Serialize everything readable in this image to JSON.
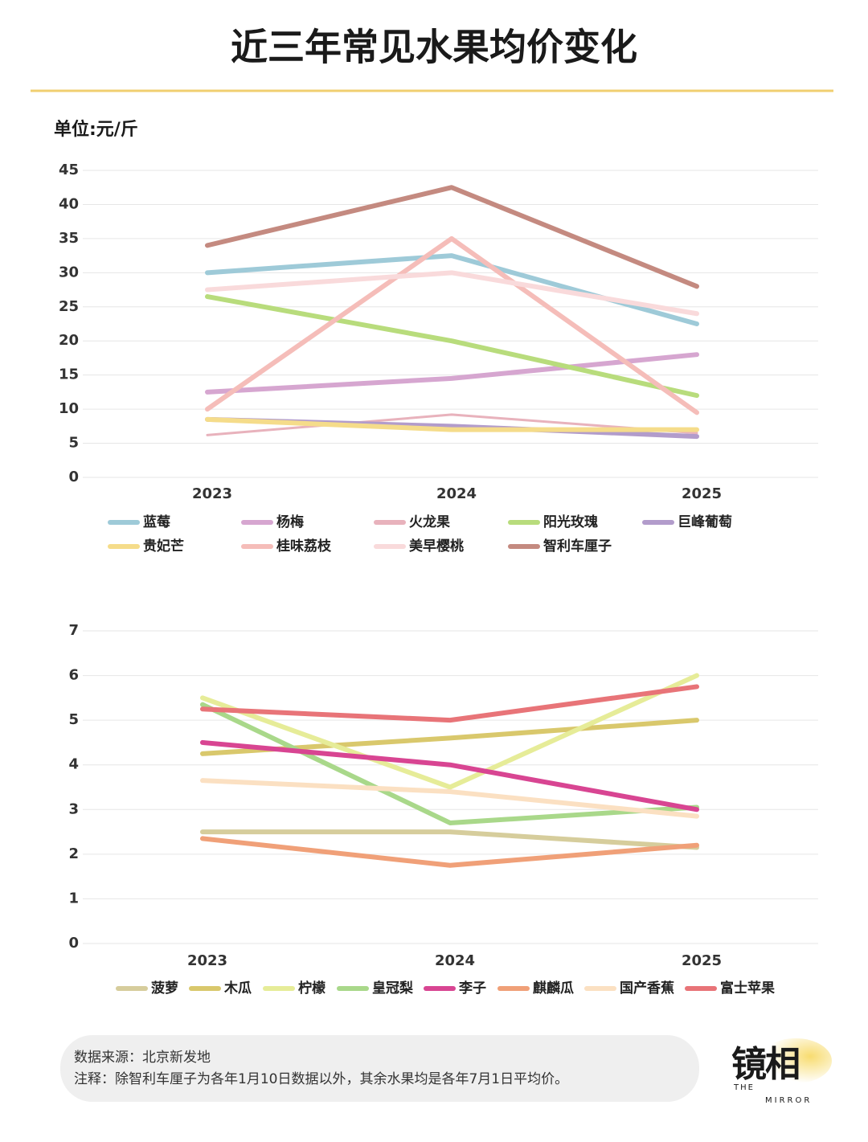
{
  "title": "近三年常见水果均价变化",
  "unit_label": "单位:元/斤",
  "chart_data": [
    {
      "type": "line",
      "categories": [
        "2023",
        "2024",
        "2025"
      ],
      "ylim": [
        0,
        45
      ],
      "yticks": [
        0,
        5,
        10,
        15,
        20,
        25,
        30,
        35,
        40,
        45
      ],
      "grid": true,
      "series": [
        {
          "name": "蓝莓",
          "color": "#9ecad8",
          "values": [
            30,
            32.5,
            22.5
          ]
        },
        {
          "name": "杨梅",
          "color": "#d6a6d0",
          "values": [
            12.5,
            14.5,
            18
          ]
        },
        {
          "name": "火龙果",
          "color": "#e8b2bc",
          "values": [
            6.2,
            9.2,
            6.5
          ]
        },
        {
          "name": "阳光玫瑰",
          "color": "#b8dc7c",
          "values": [
            26.5,
            20,
            12
          ]
        },
        {
          "name": "巨峰葡萄",
          "color": "#b29ccb",
          "values": [
            8.5,
            7.5,
            6
          ]
        },
        {
          "name": "贵妃芒",
          "color": "#f5dc8a",
          "values": [
            8.5,
            7,
            7
          ]
        },
        {
          "name": "桂味荔枝",
          "color": "#f5bdb9",
          "values": [
            10,
            35,
            9.5
          ]
        },
        {
          "name": "美早樱桃",
          "color": "#f9dadb",
          "values": [
            27.5,
            30,
            24
          ]
        },
        {
          "name": "智利车厘子",
          "color": "#c48a80",
          "values": [
            34,
            42.5,
            28
          ]
        }
      ]
    },
    {
      "type": "line",
      "categories": [
        "2023",
        "2024",
        "2025"
      ],
      "ylim": [
        0,
        7
      ],
      "yticks": [
        0,
        1,
        2,
        3,
        4,
        5,
        6,
        7
      ],
      "grid": true,
      "series": [
        {
          "name": "菠萝",
          "color": "#d6cd9c",
          "values": [
            2.5,
            2.5,
            2.15
          ]
        },
        {
          "name": "木瓜",
          "color": "#d9c86c",
          "values": [
            4.25,
            4.6,
            5
          ]
        },
        {
          "name": "柠檬",
          "color": "#e6ec98",
          "values": [
            5.5,
            3.5,
            6
          ]
        },
        {
          "name": "皇冠梨",
          "color": "#a9d88a",
          "values": [
            5.35,
            2.7,
            3.05
          ]
        },
        {
          "name": "李子",
          "color": "#d84592",
          "values": [
            4.5,
            4,
            3
          ]
        },
        {
          "name": "麒麟瓜",
          "color": "#f0a078",
          "values": [
            2.35,
            1.75,
            2.2
          ]
        },
        {
          "name": "国产香蕉",
          "color": "#fbe0c2",
          "values": [
            3.65,
            3.4,
            2.85
          ]
        },
        {
          "name": "富士苹果",
          "color": "#e87478",
          "values": [
            5.25,
            5,
            5.75
          ]
        }
      ]
    }
  ],
  "source": "数据来源：北京新发地",
  "note": "注释：除智利车厘子为各年1月10日数据以外，其余水果均是各年7月1日平均价。",
  "brand": {
    "name": "镜相",
    "sub1": "THE",
    "sub2": "MIRROR"
  }
}
